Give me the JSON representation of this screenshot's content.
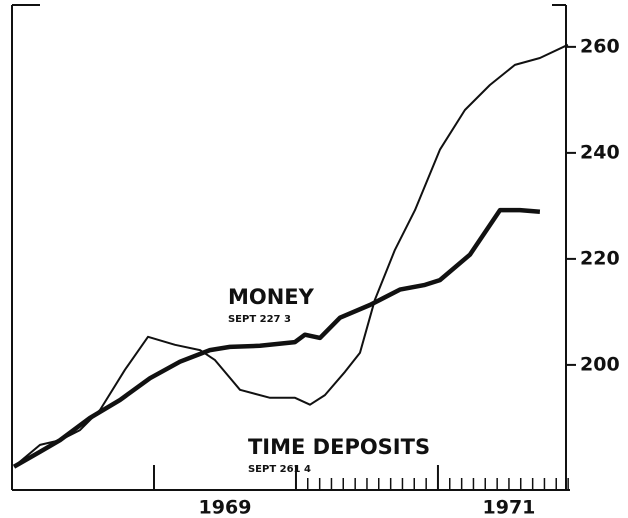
{
  "chart_data": {
    "type": "line",
    "annotations": [
      {
        "text": "MONEY",
        "sub": "SEPT  227 3",
        "x": 1969.521,
        "y": 212.6
      },
      {
        "text": "TIME DEPOSITS",
        "sub": "SEPT  261 4",
        "x": 1969.662,
        "y": 184.3
      }
    ],
    "series": [
      {
        "name": "TIME DEPOSITS",
        "color": "#111111",
        "x": [
          1968.014,
          1968.197,
          1968.338,
          1968.479,
          1968.62,
          1968.796,
          1968.958,
          1969.148,
          1969.324,
          1969.43,
          1969.606,
          1969.817,
          1969.993,
          1970.099,
          1970.204,
          1970.345,
          1970.451,
          1970.556,
          1970.697,
          1970.838,
          1971.014,
          1971.19,
          1971.366,
          1971.542,
          1971.718,
          1971.915
        ],
        "values": [
          180.8,
          184.9,
          185.8,
          187.7,
          191.5,
          199.1,
          205.3,
          203.8,
          202.8,
          200.9,
          195.3,
          193.8,
          193.8,
          192.5,
          194.3,
          198.7,
          202.3,
          212.3,
          221.7,
          229.2,
          240.6,
          248.1,
          252.8,
          256.6,
          257.9,
          260.4
        ]
      },
      {
        "name": "MONEY",
        "color": "#111111",
        "x": [
          1968.014,
          1968.197,
          1968.338,
          1968.549,
          1968.761,
          1968.972,
          1969.183,
          1969.394,
          1969.535,
          1969.746,
          1969.993,
          1970.063,
          1970.169,
          1970.31,
          1970.521,
          1970.732,
          1970.908,
          1971.014,
          1971.225,
          1971.437,
          1971.577,
          1971.718
        ],
        "values": [
          180.8,
          183.6,
          185.8,
          190.0,
          193.4,
          197.5,
          200.6,
          202.8,
          203.4,
          203.6,
          204.3,
          205.7,
          205.1,
          208.9,
          211.3,
          214.2,
          215.1,
          216.0,
          220.8,
          229.2,
          229.2,
          228.9
        ]
      }
    ],
    "xlim": [
      1968,
      1971.93
    ],
    "xticks": [
      {
        "value": 1969.5,
        "label": "1969"
      },
      {
        "value": 1971.5,
        "label": "1971"
      }
    ],
    "major_ticks": [
      1969,
      1970,
      1971
    ],
    "minor_ticks": [
      1970.083,
      1970.167,
      1970.25,
      1970.333,
      1970.417,
      1970.5,
      1970.583,
      1970.667,
      1970.75,
      1970.833,
      1970.917,
      1971.083,
      1971.167,
      1971.25,
      1971.333,
      1971.417,
      1971.5,
      1971.583,
      1971.667,
      1971.75,
      1971.833,
      1971.917
    ],
    "ylim": [
      176.4,
      267.9
    ],
    "yticks": [
      200,
      220,
      240,
      260
    ],
    "y_axis_side": "right"
  }
}
